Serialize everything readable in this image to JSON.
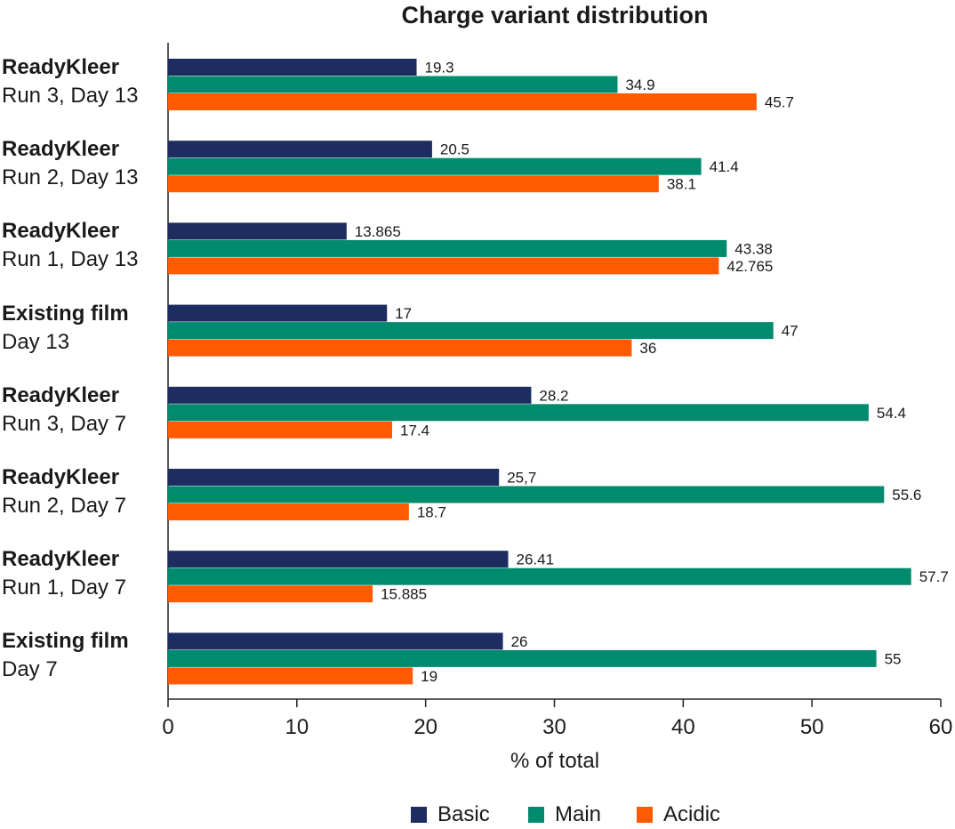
{
  "chart_data": {
    "type": "bar",
    "orientation": "horizontal",
    "title": "Charge variant distribution",
    "xlabel": "% of total",
    "ylabel": "",
    "xlim": [
      0,
      60
    ],
    "x_ticks": [
      "0",
      "10",
      "20",
      "30",
      "40",
      "50",
      "60"
    ],
    "grid": false,
    "legend_position": "bottom",
    "categories": [
      {
        "line1": "ReadyKleer",
        "line2": "Run 3, Day 13"
      },
      {
        "line1": "ReadyKleer",
        "line2": "Run 2, Day 13"
      },
      {
        "line1": "ReadyKleer",
        "line2": "Run 1, Day 13"
      },
      {
        "line1": "Existing film",
        "line2": "Day 13"
      },
      {
        "line1": "ReadyKleer",
        "line2": "Run 3, Day 7"
      },
      {
        "line1": "ReadyKleer",
        "line2": "Run 2, Day 7"
      },
      {
        "line1": "ReadyKleer",
        "line2": "Run 1, Day 7"
      },
      {
        "line1": "Existing film",
        "line2": "Day 7"
      }
    ],
    "series": [
      {
        "name": "Basic",
        "color": "#1e2d5f",
        "values": [
          19.3,
          20.5,
          13.865,
          17,
          28.2,
          25.7,
          26.41,
          26
        ],
        "labels": [
          "19.3",
          "20.5",
          "13.865",
          "17",
          "28.2",
          "25,7",
          "26.41",
          "26"
        ]
      },
      {
        "name": "Main",
        "color": "#008a6e",
        "values": [
          34.9,
          41.4,
          43.38,
          47,
          54.4,
          55.6,
          57.7,
          55
        ],
        "labels": [
          "34.9",
          "41.4",
          "43.38",
          "47",
          "54.4",
          "55.6",
          "57.7",
          "55"
        ]
      },
      {
        "name": "Acidic",
        "color": "#ff5a00",
        "values": [
          45.7,
          38.1,
          42.765,
          36,
          17.4,
          18.7,
          15.885,
          19
        ],
        "labels": [
          "45.7",
          "38.1",
          "42.765",
          "36",
          "17.4",
          "18.7",
          "15.885",
          "19"
        ]
      }
    ]
  }
}
